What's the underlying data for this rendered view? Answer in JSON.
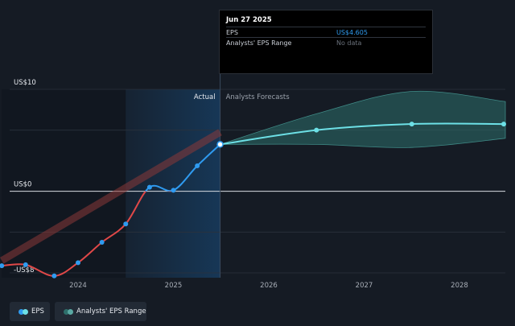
{
  "tooltip": {
    "date": "Jun 27 2025",
    "rows": [
      {
        "label": "EPS",
        "value": "US$4.605",
        "color": "#2f9bf0"
      },
      {
        "label": "Analysts' EPS Range",
        "value": "No data",
        "color": "#6b727c"
      }
    ]
  },
  "legend": {
    "eps_label": "EPS",
    "range_label": "Analysts' EPS Range"
  },
  "colors": {
    "background": "#151b24",
    "actual_band": "#173a5c",
    "eps_actual_blue": "#2f9bf0",
    "eps_negative_red": "#e04848",
    "forecast_line": "#6de0e6",
    "range_fill": "#2e6f6b",
    "trend_band": "#8a3838"
  },
  "chart_data": {
    "type": "line",
    "y_tick_labels": [
      "US$10",
      "US$0",
      "-US$8"
    ],
    "x_tick_labels": [
      "2024",
      "2025",
      "2026",
      "2027",
      "2028"
    ],
    "ylim": [
      -8,
      10
    ],
    "xlim": [
      2023.2,
      2028.5
    ],
    "divider_labels": {
      "actual": "Actual",
      "forecast": "Analysts Forecasts"
    },
    "actual_region": [
      2024.5,
      2025.49
    ],
    "series": [
      {
        "name": "EPS",
        "x": [
          2023.2,
          2023.45,
          2023.75,
          2024.0,
          2024.25,
          2024.5,
          2024.75,
          2025.0,
          2025.25,
          2025.49
        ],
        "y": [
          -7.3,
          -7.2,
          -8.3,
          -7.0,
          -5.0,
          -3.2,
          0.4,
          0.1,
          2.5,
          4.6
        ]
      },
      {
        "name": "Analysts Forecasts",
        "x": [
          2025.49,
          2026.5,
          2027.5,
          2028.5
        ],
        "y": [
          4.6,
          6.0,
          6.6,
          6.6
        ]
      },
      {
        "name": "Analysts' EPS Range",
        "x": [
          2025.49,
          2026.5,
          2027.5,
          2028.5
        ],
        "high": [
          4.6,
          7.6,
          9.8,
          8.8
        ],
        "low": [
          4.6,
          4.6,
          4.3,
          5.2
        ]
      }
    ],
    "trend_band": {
      "x": [
        2023.2,
        2025.49
      ],
      "y": [
        -6.8,
        5.8
      ]
    },
    "grid": true,
    "legend_position": "bottom-left"
  }
}
